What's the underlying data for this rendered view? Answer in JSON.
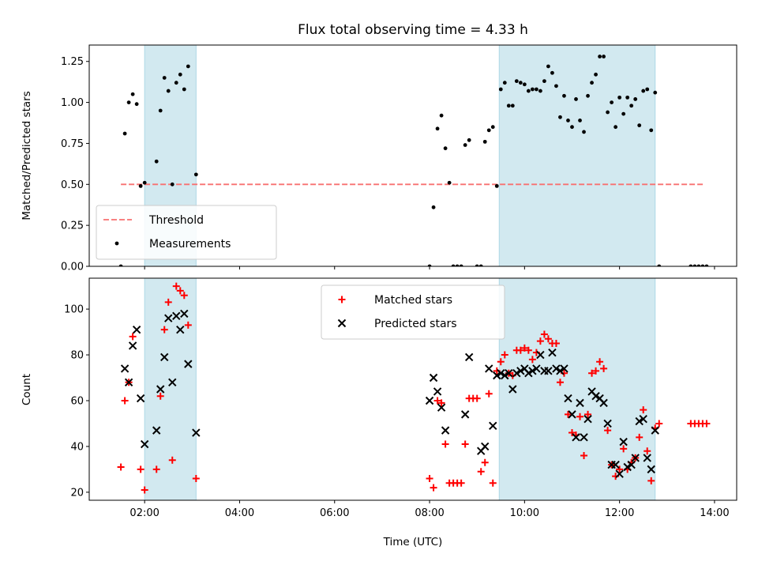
{
  "chart_data": [
    {
      "type": "scatter",
      "title": "Flux total observing time = 4.33 h",
      "xlabel": "",
      "ylabel": "Matched/Predicted stars",
      "xlim": [
        "00:50",
        "14:28"
      ],
      "ylim": [
        0,
        1.35
      ],
      "yticks": [
        "0.00",
        "0.25",
        "0.50",
        "0.75",
        "1.00",
        "1.25"
      ],
      "xticks": [
        "02:00",
        "04:00",
        "06:00",
        "08:00",
        "10:00",
        "12:00",
        "14:00"
      ],
      "show_xticklabels": false,
      "grid": false,
      "legend": "lower left",
      "shaded_intervals": [
        [
          "02:00",
          "03:05"
        ],
        [
          "09:28",
          "12:45"
        ]
      ],
      "threshold": {
        "name": "Threshold",
        "y": 0.5,
        "x": [
          "01:30",
          "13:48"
        ],
        "color": "#f87171",
        "style": "dashed"
      },
      "series": [
        {
          "name": "Measurements",
          "marker": "dot",
          "color": "#000000",
          "points": [
            [
              "01:30",
              0.0
            ],
            [
              "01:35",
              0.81
            ],
            [
              "01:40",
              1.0
            ],
            [
              "01:45",
              1.05
            ],
            [
              "01:50",
              0.99
            ],
            [
              "01:55",
              0.49
            ],
            [
              "02:00",
              0.51
            ],
            [
              "02:15",
              0.64
            ],
            [
              "02:20",
              0.95
            ],
            [
              "02:25",
              1.15
            ],
            [
              "02:30",
              1.07
            ],
            [
              "02:35",
              0.5
            ],
            [
              "02:40",
              1.12
            ],
            [
              "02:45",
              1.17
            ],
            [
              "02:50",
              1.08
            ],
            [
              "02:55",
              1.22
            ],
            [
              "03:05",
              0.56
            ],
            [
              "08:00",
              0.0
            ],
            [
              "08:05",
              0.36
            ],
            [
              "08:10",
              0.84
            ],
            [
              "08:15",
              0.92
            ],
            [
              "08:20",
              0.72
            ],
            [
              "08:25",
              0.51
            ],
            [
              "08:30",
              0.0
            ],
            [
              "08:35",
              0.0
            ],
            [
              "08:40",
              0.0
            ],
            [
              "08:45",
              0.74
            ],
            [
              "08:50",
              0.77
            ],
            [
              "09:00",
              0.0
            ],
            [
              "09:05",
              0.0
            ],
            [
              "09:10",
              0.76
            ],
            [
              "09:15",
              0.83
            ],
            [
              "09:20",
              0.85
            ],
            [
              "09:25",
              0.49
            ],
            [
              "09:30",
              1.08
            ],
            [
              "09:35",
              1.12
            ],
            [
              "09:40",
              0.98
            ],
            [
              "09:45",
              0.98
            ],
            [
              "09:50",
              1.13
            ],
            [
              "09:55",
              1.12
            ],
            [
              "10:00",
              1.11
            ],
            [
              "10:05",
              1.07
            ],
            [
              "10:10",
              1.08
            ],
            [
              "10:15",
              1.08
            ],
            [
              "10:20",
              1.07
            ],
            [
              "10:25",
              1.13
            ],
            [
              "10:30",
              1.22
            ],
            [
              "10:35",
              1.18
            ],
            [
              "10:40",
              1.1
            ],
            [
              "10:45",
              0.91
            ],
            [
              "10:50",
              1.04
            ],
            [
              "10:55",
              0.89
            ],
            [
              "11:00",
              0.85
            ],
            [
              "11:05",
              1.02
            ],
            [
              "11:10",
              0.89
            ],
            [
              "11:15",
              0.82
            ],
            [
              "11:20",
              1.04
            ],
            [
              "11:25",
              1.12
            ],
            [
              "11:30",
              1.17
            ],
            [
              "11:35",
              1.28
            ],
            [
              "11:40",
              1.28
            ],
            [
              "11:45",
              0.94
            ],
            [
              "11:50",
              1.0
            ],
            [
              "11:55",
              0.85
            ],
            [
              "12:00",
              1.03
            ],
            [
              "12:05",
              0.93
            ],
            [
              "12:10",
              1.03
            ],
            [
              "12:15",
              0.98
            ],
            [
              "12:20",
              1.02
            ],
            [
              "12:25",
              0.86
            ],
            [
              "12:30",
              1.07
            ],
            [
              "12:35",
              1.08
            ],
            [
              "12:40",
              0.83
            ],
            [
              "12:45",
              1.06
            ],
            [
              "12:50",
              0.0
            ],
            [
              "13:30",
              0.0
            ],
            [
              "13:35",
              0.0
            ],
            [
              "13:40",
              0.0
            ],
            [
              "13:45",
              0.0
            ],
            [
              "13:50",
              0.0
            ]
          ]
        }
      ]
    },
    {
      "type": "scatter",
      "title": "",
      "xlabel": "Time (UTC)",
      "ylabel": "Count",
      "xlim": [
        "00:50",
        "14:28"
      ],
      "ylim": [
        16.5,
        113.5
      ],
      "yticks": [
        "20",
        "40",
        "60",
        "80",
        "100"
      ],
      "xticks": [
        "02:00",
        "04:00",
        "06:00",
        "08:00",
        "10:00",
        "12:00",
        "14:00"
      ],
      "show_xticklabels": true,
      "grid": false,
      "legend": "upper center",
      "shaded_intervals": [
        [
          "02:00",
          "03:05"
        ],
        [
          "09:28",
          "12:45"
        ]
      ],
      "series": [
        {
          "name": "Matched stars",
          "marker": "plus",
          "color": "#ff0000",
          "points": [
            [
              "01:30",
              31
            ],
            [
              "01:35",
              60
            ],
            [
              "01:40",
              68
            ],
            [
              "01:45",
              88
            ],
            [
              "01:55",
              30
            ],
            [
              "02:00",
              21
            ],
            [
              "02:15",
              30
            ],
            [
              "02:20",
              62
            ],
            [
              "02:25",
              91
            ],
            [
              "02:30",
              103
            ],
            [
              "02:35",
              34
            ],
            [
              "02:40",
              110
            ],
            [
              "02:45",
              108
            ],
            [
              "02:50",
              106
            ],
            [
              "02:55",
              93
            ],
            [
              "03:05",
              26
            ],
            [
              "08:00",
              26
            ],
            [
              "08:05",
              22
            ],
            [
              "08:10",
              60
            ],
            [
              "08:15",
              59
            ],
            [
              "08:20",
              41
            ],
            [
              "08:25",
              24
            ],
            [
              "08:30",
              24
            ],
            [
              "08:35",
              24
            ],
            [
              "08:40",
              24
            ],
            [
              "08:45",
              41
            ],
            [
              "08:50",
              61
            ],
            [
              "08:55",
              61
            ],
            [
              "09:00",
              61
            ],
            [
              "09:05",
              29
            ],
            [
              "09:10",
              33
            ],
            [
              "09:15",
              63
            ],
            [
              "09:20",
              24
            ],
            [
              "09:25",
              73
            ],
            [
              "09:30",
              77
            ],
            [
              "09:35",
              80
            ],
            [
              "09:40",
              72
            ],
            [
              "09:45",
              71
            ],
            [
              "09:50",
              82
            ],
            [
              "09:55",
              82
            ],
            [
              "10:00",
              83
            ],
            [
              "10:05",
              82
            ],
            [
              "10:10",
              78
            ],
            [
              "10:15",
              81
            ],
            [
              "10:20",
              86
            ],
            [
              "10:25",
              89
            ],
            [
              "10:30",
              87
            ],
            [
              "10:35",
              85
            ],
            [
              "10:40",
              85
            ],
            [
              "10:45",
              68
            ],
            [
              "10:50",
              72
            ],
            [
              "10:55",
              54
            ],
            [
              "11:00",
              46
            ],
            [
              "11:05",
              45
            ],
            [
              "11:10",
              53
            ],
            [
              "11:15",
              36
            ],
            [
              "11:20",
              54
            ],
            [
              "11:25",
              72
            ],
            [
              "11:30",
              73
            ],
            [
              "11:35",
              77
            ],
            [
              "11:40",
              74
            ],
            [
              "11:45",
              47
            ],
            [
              "11:50",
              32
            ],
            [
              "11:55",
              27
            ],
            [
              "12:00",
              30
            ],
            [
              "12:05",
              39
            ],
            [
              "12:10",
              30
            ],
            [
              "12:15",
              33
            ],
            [
              "12:20",
              35
            ],
            [
              "12:25",
              44
            ],
            [
              "12:30",
              56
            ],
            [
              "12:35",
              38
            ],
            [
              "12:40",
              25
            ],
            [
              "12:45",
              48
            ],
            [
              "12:50",
              50
            ],
            [
              "13:30",
              50
            ],
            [
              "13:35",
              50
            ],
            [
              "13:40",
              50
            ],
            [
              "13:45",
              50
            ],
            [
              "13:50",
              50
            ]
          ]
        },
        {
          "name": "Predicted stars",
          "marker": "cross",
          "color": "#000000",
          "points": [
            [
              "01:35",
              74
            ],
            [
              "01:40",
              68
            ],
            [
              "01:45",
              84
            ],
            [
              "01:50",
              91
            ],
            [
              "01:55",
              61
            ],
            [
              "02:00",
              41
            ],
            [
              "02:15",
              47
            ],
            [
              "02:20",
              65
            ],
            [
              "02:25",
              79
            ],
            [
              "02:30",
              96
            ],
            [
              "02:35",
              68
            ],
            [
              "02:40",
              97
            ],
            [
              "02:45",
              91
            ],
            [
              "02:50",
              98
            ],
            [
              "02:55",
              76
            ],
            [
              "03:05",
              46
            ],
            [
              "08:00",
              60
            ],
            [
              "08:05",
              70
            ],
            [
              "08:10",
              64
            ],
            [
              "08:15",
              57
            ],
            [
              "08:20",
              47
            ],
            [
              "08:45",
              54
            ],
            [
              "08:50",
              79
            ],
            [
              "09:05",
              38
            ],
            [
              "09:10",
              40
            ],
            [
              "09:15",
              74
            ],
            [
              "09:20",
              49
            ],
            [
              "09:25",
              71
            ],
            [
              "09:30",
              72
            ],
            [
              "09:35",
              71
            ],
            [
              "09:40",
              72
            ],
            [
              "09:45",
              65
            ],
            [
              "09:50",
              72
            ],
            [
              "09:55",
              73
            ],
            [
              "10:00",
              74
            ],
            [
              "10:05",
              72
            ],
            [
              "10:10",
              73
            ],
            [
              "10:15",
              74
            ],
            [
              "10:20",
              80
            ],
            [
              "10:25",
              73
            ],
            [
              "10:30",
              73
            ],
            [
              "10:35",
              81
            ],
            [
              "10:40",
              74
            ],
            [
              "10:45",
              73
            ],
            [
              "10:50",
              74
            ],
            [
              "10:55",
              61
            ],
            [
              "11:00",
              54
            ],
            [
              "11:05",
              44
            ],
            [
              "11:10",
              59
            ],
            [
              "11:15",
              44
            ],
            [
              "11:20",
              52
            ],
            [
              "11:25",
              64
            ],
            [
              "11:30",
              62
            ],
            [
              "11:35",
              61
            ],
            [
              "11:40",
              59
            ],
            [
              "11:45",
              50
            ],
            [
              "11:50",
              32
            ],
            [
              "11:55",
              32
            ],
            [
              "12:00",
              28
            ],
            [
              "12:05",
              42
            ],
            [
              "12:10",
              31
            ],
            [
              "12:15",
              32
            ],
            [
              "12:20",
              35
            ],
            [
              "12:25",
              51
            ],
            [
              "12:30",
              52
            ],
            [
              "12:35",
              35
            ],
            [
              "12:40",
              30
            ],
            [
              "12:45",
              47
            ]
          ]
        }
      ]
    }
  ]
}
